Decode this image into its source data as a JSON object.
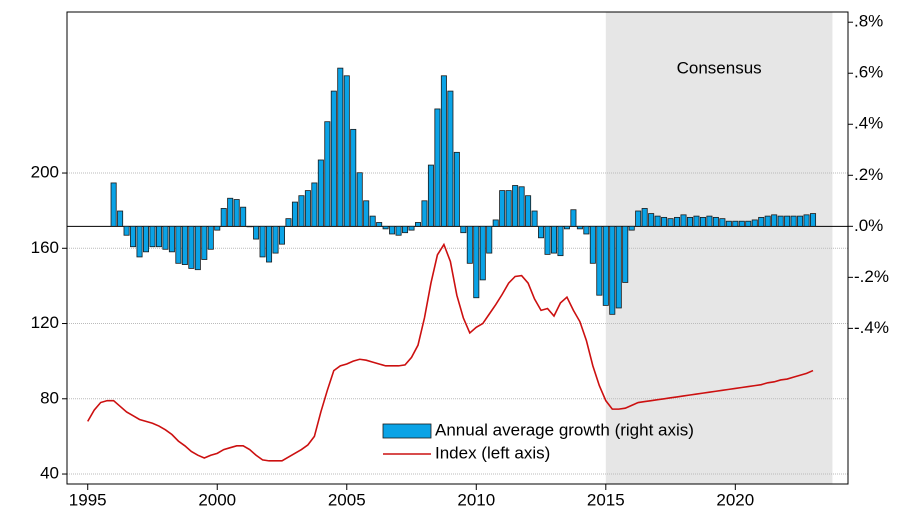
{
  "chart_data": {
    "type": "bar+line",
    "x": [
      1995,
      1995.25,
      1995.5,
      1995.75,
      1996,
      1996.25,
      1996.5,
      1996.75,
      1997,
      1997.25,
      1997.5,
      1997.75,
      1998,
      1998.25,
      1998.5,
      1998.75,
      1999,
      1999.25,
      1999.5,
      1999.75,
      2000,
      2000.25,
      2000.5,
      2000.75,
      2001,
      2001.25,
      2001.5,
      2001.75,
      2002,
      2002.25,
      2002.5,
      2002.75,
      2003,
      2003.25,
      2003.5,
      2003.75,
      2004,
      2004.25,
      2004.5,
      2004.75,
      2005,
      2005.25,
      2005.5,
      2005.75,
      2006,
      2006.25,
      2006.5,
      2006.75,
      2007,
      2007.25,
      2007.5,
      2007.75,
      2008,
      2008.25,
      2008.5,
      2008.75,
      2009,
      2009.25,
      2009.5,
      2009.75,
      2010,
      2010.25,
      2010.5,
      2010.75,
      2011,
      2011.25,
      2011.5,
      2011.75,
      2012,
      2012.25,
      2012.5,
      2012.75,
      2013,
      2013.25,
      2013.5,
      2013.75,
      2014,
      2014.25,
      2014.5,
      2014.75,
      2015,
      2015.25,
      2015.5,
      2015.75,
      2016,
      2016.25,
      2016.5,
      2016.75,
      2017,
      2017.25,
      2017.5,
      2017.75,
      2018,
      2018.25,
      2018.5,
      2018.75,
      2019,
      2019.25,
      2019.5,
      2019.75,
      2020,
      2020.25,
      2020.5,
      2020.75,
      2021,
      2021.25,
      2021.5,
      2021.75,
      2022,
      2022.25,
      2022.5,
      2022.75,
      2023
    ],
    "series": [
      {
        "name": "Annual average growth (right axis)",
        "type": "bar",
        "axis": "y2",
        "color": "#0aa3e6",
        "values": [
          null,
          null,
          null,
          null,
          0.17,
          0.06,
          -0.035,
          -0.08,
          -0.12,
          -0.1,
          -0.08,
          -0.08,
          -0.09,
          -0.1,
          -0.145,
          -0.15,
          -0.165,
          -0.17,
          -0.13,
          -0.09,
          -0.015,
          0.07,
          0.11,
          0.105,
          0.075,
          0,
          -0.05,
          -0.12,
          -0.14,
          -0.105,
          -0.07,
          0.03,
          0.095,
          0.12,
          0.14,
          0.17,
          0.26,
          0.41,
          0.53,
          0.62,
          0.59,
          0.38,
          0.21,
          0.1,
          0.04,
          0.015,
          -0.01,
          -0.03,
          -0.035,
          -0.025,
          -0.015,
          0.015,
          0.1,
          0.24,
          0.46,
          0.59,
          0.53,
          0.29,
          -0.025,
          -0.145,
          -0.28,
          -0.21,
          -0.105,
          0.025,
          0.14,
          0.14,
          0.16,
          0.155,
          0.12,
          0.06,
          -0.045,
          -0.11,
          -0.105,
          -0.115,
          -0.01,
          0.065,
          -0.01,
          -0.03,
          -0.145,
          -0.27,
          -0.31,
          -0.345,
          -0.32,
          -0.22,
          -0.015,
          0.06,
          0.07,
          0.05,
          0.04,
          0.035,
          0.03,
          0.035,
          0.045,
          0.035,
          0.04,
          0.035,
          0.04,
          0.035,
          0.03,
          0.02,
          0.02,
          0.02,
          0.02,
          0.025,
          0.035,
          0.04,
          0.045,
          0.04,
          0.04,
          0.04,
          0.04,
          0.045,
          0.05
        ]
      },
      {
        "name": "Index (left axis)",
        "type": "line",
        "axis": "y",
        "color": "#cc1010",
        "values": [
          68,
          74,
          78,
          79,
          79,
          76,
          73,
          71,
          69,
          68,
          67,
          65.5,
          63.5,
          61,
          57.5,
          55,
          52,
          50,
          48.5,
          50,
          51,
          53,
          54,
          55,
          55,
          53,
          50,
          47.5,
          47,
          47,
          47,
          49,
          51,
          53,
          55.5,
          60,
          73,
          84.5,
          95,
          97.5,
          98.5,
          100,
          101,
          100.5,
          99.5,
          98.5,
          97.5,
          97.5,
          97.5,
          98,
          102,
          108.5,
          123,
          141.5,
          156.5,
          162,
          153,
          135,
          123,
          115,
          118,
          120,
          125,
          130,
          135.5,
          141.5,
          145,
          145.5,
          141.5,
          133,
          127,
          128,
          124,
          131,
          134,
          127,
          121,
          111,
          97.5,
          87,
          79,
          74.5,
          74.5,
          75,
          76.5,
          78,
          78.5,
          79,
          79.5,
          80,
          80.5,
          81,
          81.5,
          82,
          82.5,
          83,
          83.5,
          84,
          84.5,
          85,
          85.5,
          86,
          86.5,
          87,
          87.5,
          88.5,
          89,
          90,
          90.5,
          91.5,
          92.5,
          93.5,
          95
        ]
      }
    ],
    "xlim": [
      1994.2,
      2024.35
    ],
    "xticks": [
      1995,
      2000,
      2005,
      2010,
      2015,
      2020
    ],
    "ylim": [
      34.7,
      285.6
    ],
    "yticks": [
      40,
      80,
      120,
      160,
      200
    ],
    "y2lim": [
      -1.01,
      0.84
    ],
    "y2ticks": [
      {
        "value": -0.4,
        "label": "-.4%"
      },
      {
        "value": -0.2,
        "label": "-.2%"
      },
      {
        "value": 0,
        "label": ".0%"
      },
      {
        "value": 0.2,
        "label": ".2%"
      },
      {
        "value": 0.4,
        "label": ".4%"
      },
      {
        "value": 0.6,
        "label": ".6%"
      },
      {
        "value": 0.8,
        "label": ".8%"
      }
    ],
    "grid": true,
    "legend": "bottom",
    "shade": {
      "x": [
        2015,
        2023.75
      ],
      "label": "Consensus",
      "color": "#e6e6e6"
    }
  }
}
